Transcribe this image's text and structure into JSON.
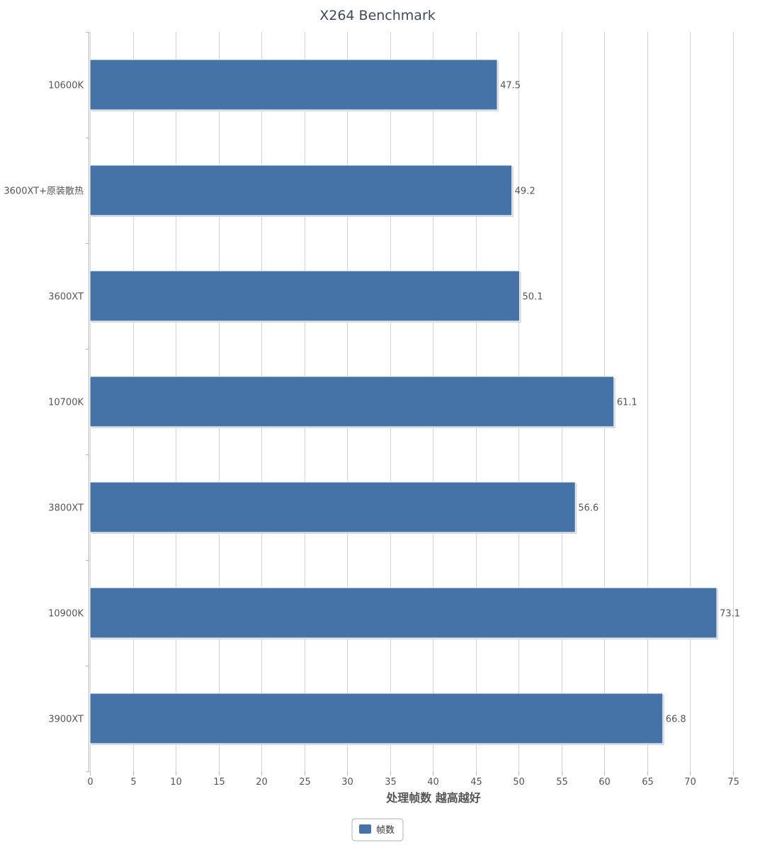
{
  "chart_data": {
    "type": "bar",
    "orientation": "horizontal",
    "title": "X264 Benchmark",
    "xlabel": "处理帧数 越高越好",
    "ylabel": "",
    "categories": [
      "10600K",
      "3600XT+原装散热",
      "3600XT",
      "10700K",
      "3800XT",
      "10900K",
      "3900XT"
    ],
    "series": [
      {
        "name": "帧数",
        "values": [
          47.5,
          49.2,
          50.1,
          61.1,
          56.6,
          73.1,
          66.8
        ],
        "color": "#4572a7"
      }
    ],
    "xlim": [
      0,
      75
    ],
    "ticks": [
      0,
      5,
      10,
      15,
      20,
      25,
      30,
      35,
      40,
      45,
      50,
      55,
      60,
      65,
      70,
      75
    ],
    "grid": true,
    "legend_position": "bottom-center",
    "data_labels": true
  }
}
